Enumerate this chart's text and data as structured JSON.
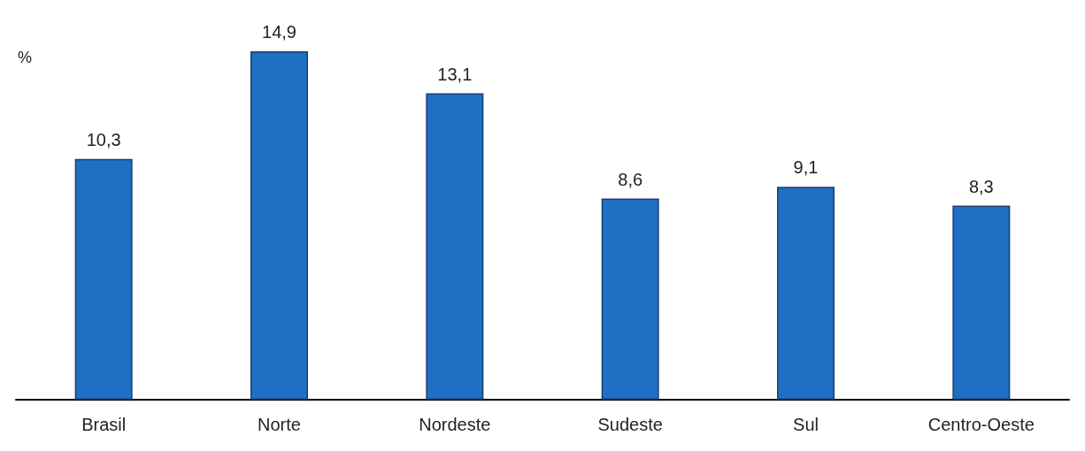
{
  "chart_data": {
    "type": "bar",
    "ylabel": "%",
    "categories": [
      "Brasil",
      "Norte",
      "Nordeste",
      "Sudeste",
      "Sul",
      "Centro-Oeste"
    ],
    "values": [
      10.3,
      14.9,
      13.1,
      8.6,
      9.1,
      8.3
    ],
    "value_labels": [
      "10,3",
      "14,9",
      "13,1",
      "8,6",
      "9,1",
      "8,3"
    ],
    "color": "#1f6fc5"
  }
}
